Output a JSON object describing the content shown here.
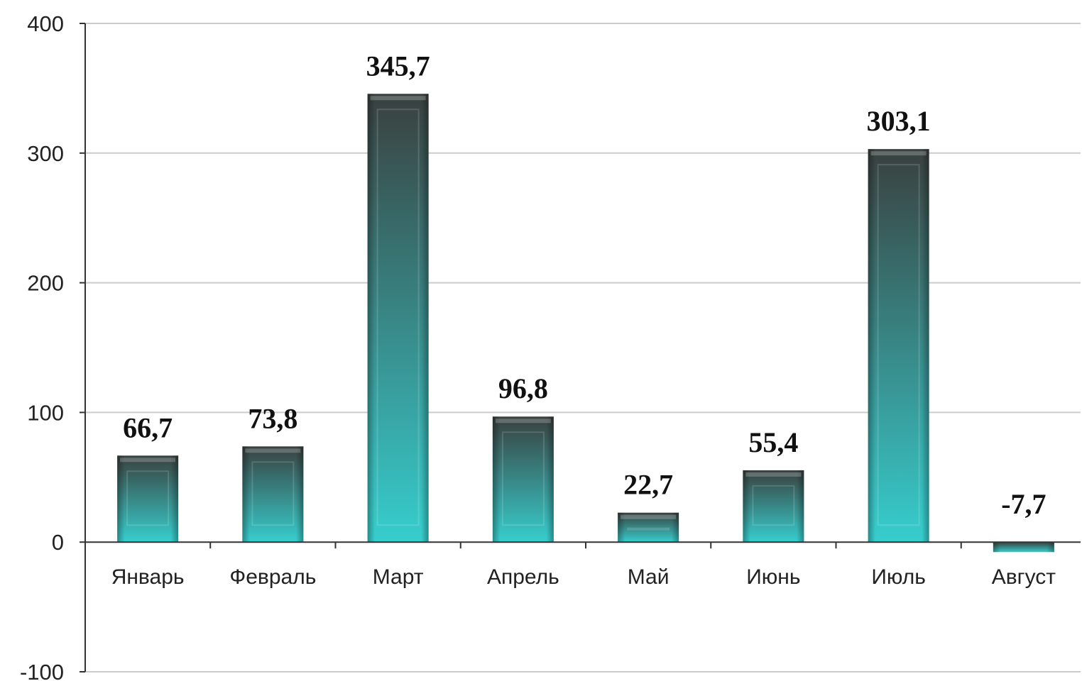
{
  "chart_data": {
    "type": "bar",
    "title": "",
    "xlabel": "",
    "ylabel": "",
    "categories": [
      "Январь",
      "Февраль",
      "Март",
      "Апрель",
      "Май",
      "Июнь",
      "Июль",
      "Август"
    ],
    "values": [
      66.7,
      73.8,
      345.7,
      96.8,
      22.7,
      55.4,
      303.1,
      -7.7
    ],
    "value_labels": [
      "66,7",
      "73,8",
      "345,7",
      "96,8",
      "22,7",
      "55,4",
      "303,1",
      "-7,7"
    ],
    "ylim": [
      -100,
      400
    ],
    "yticks": [
      400,
      300,
      200,
      100,
      0,
      -100
    ],
    "ytick_labels": [
      "400",
      "300",
      "200",
      "100",
      "0",
      "-100"
    ],
    "grid": true,
    "legend": "none",
    "colors": {
      "bar_top": "#3c4442",
      "bar_bottom": "#3ad8d8",
      "grid": "#cccccc",
      "axis": "#333333"
    }
  }
}
